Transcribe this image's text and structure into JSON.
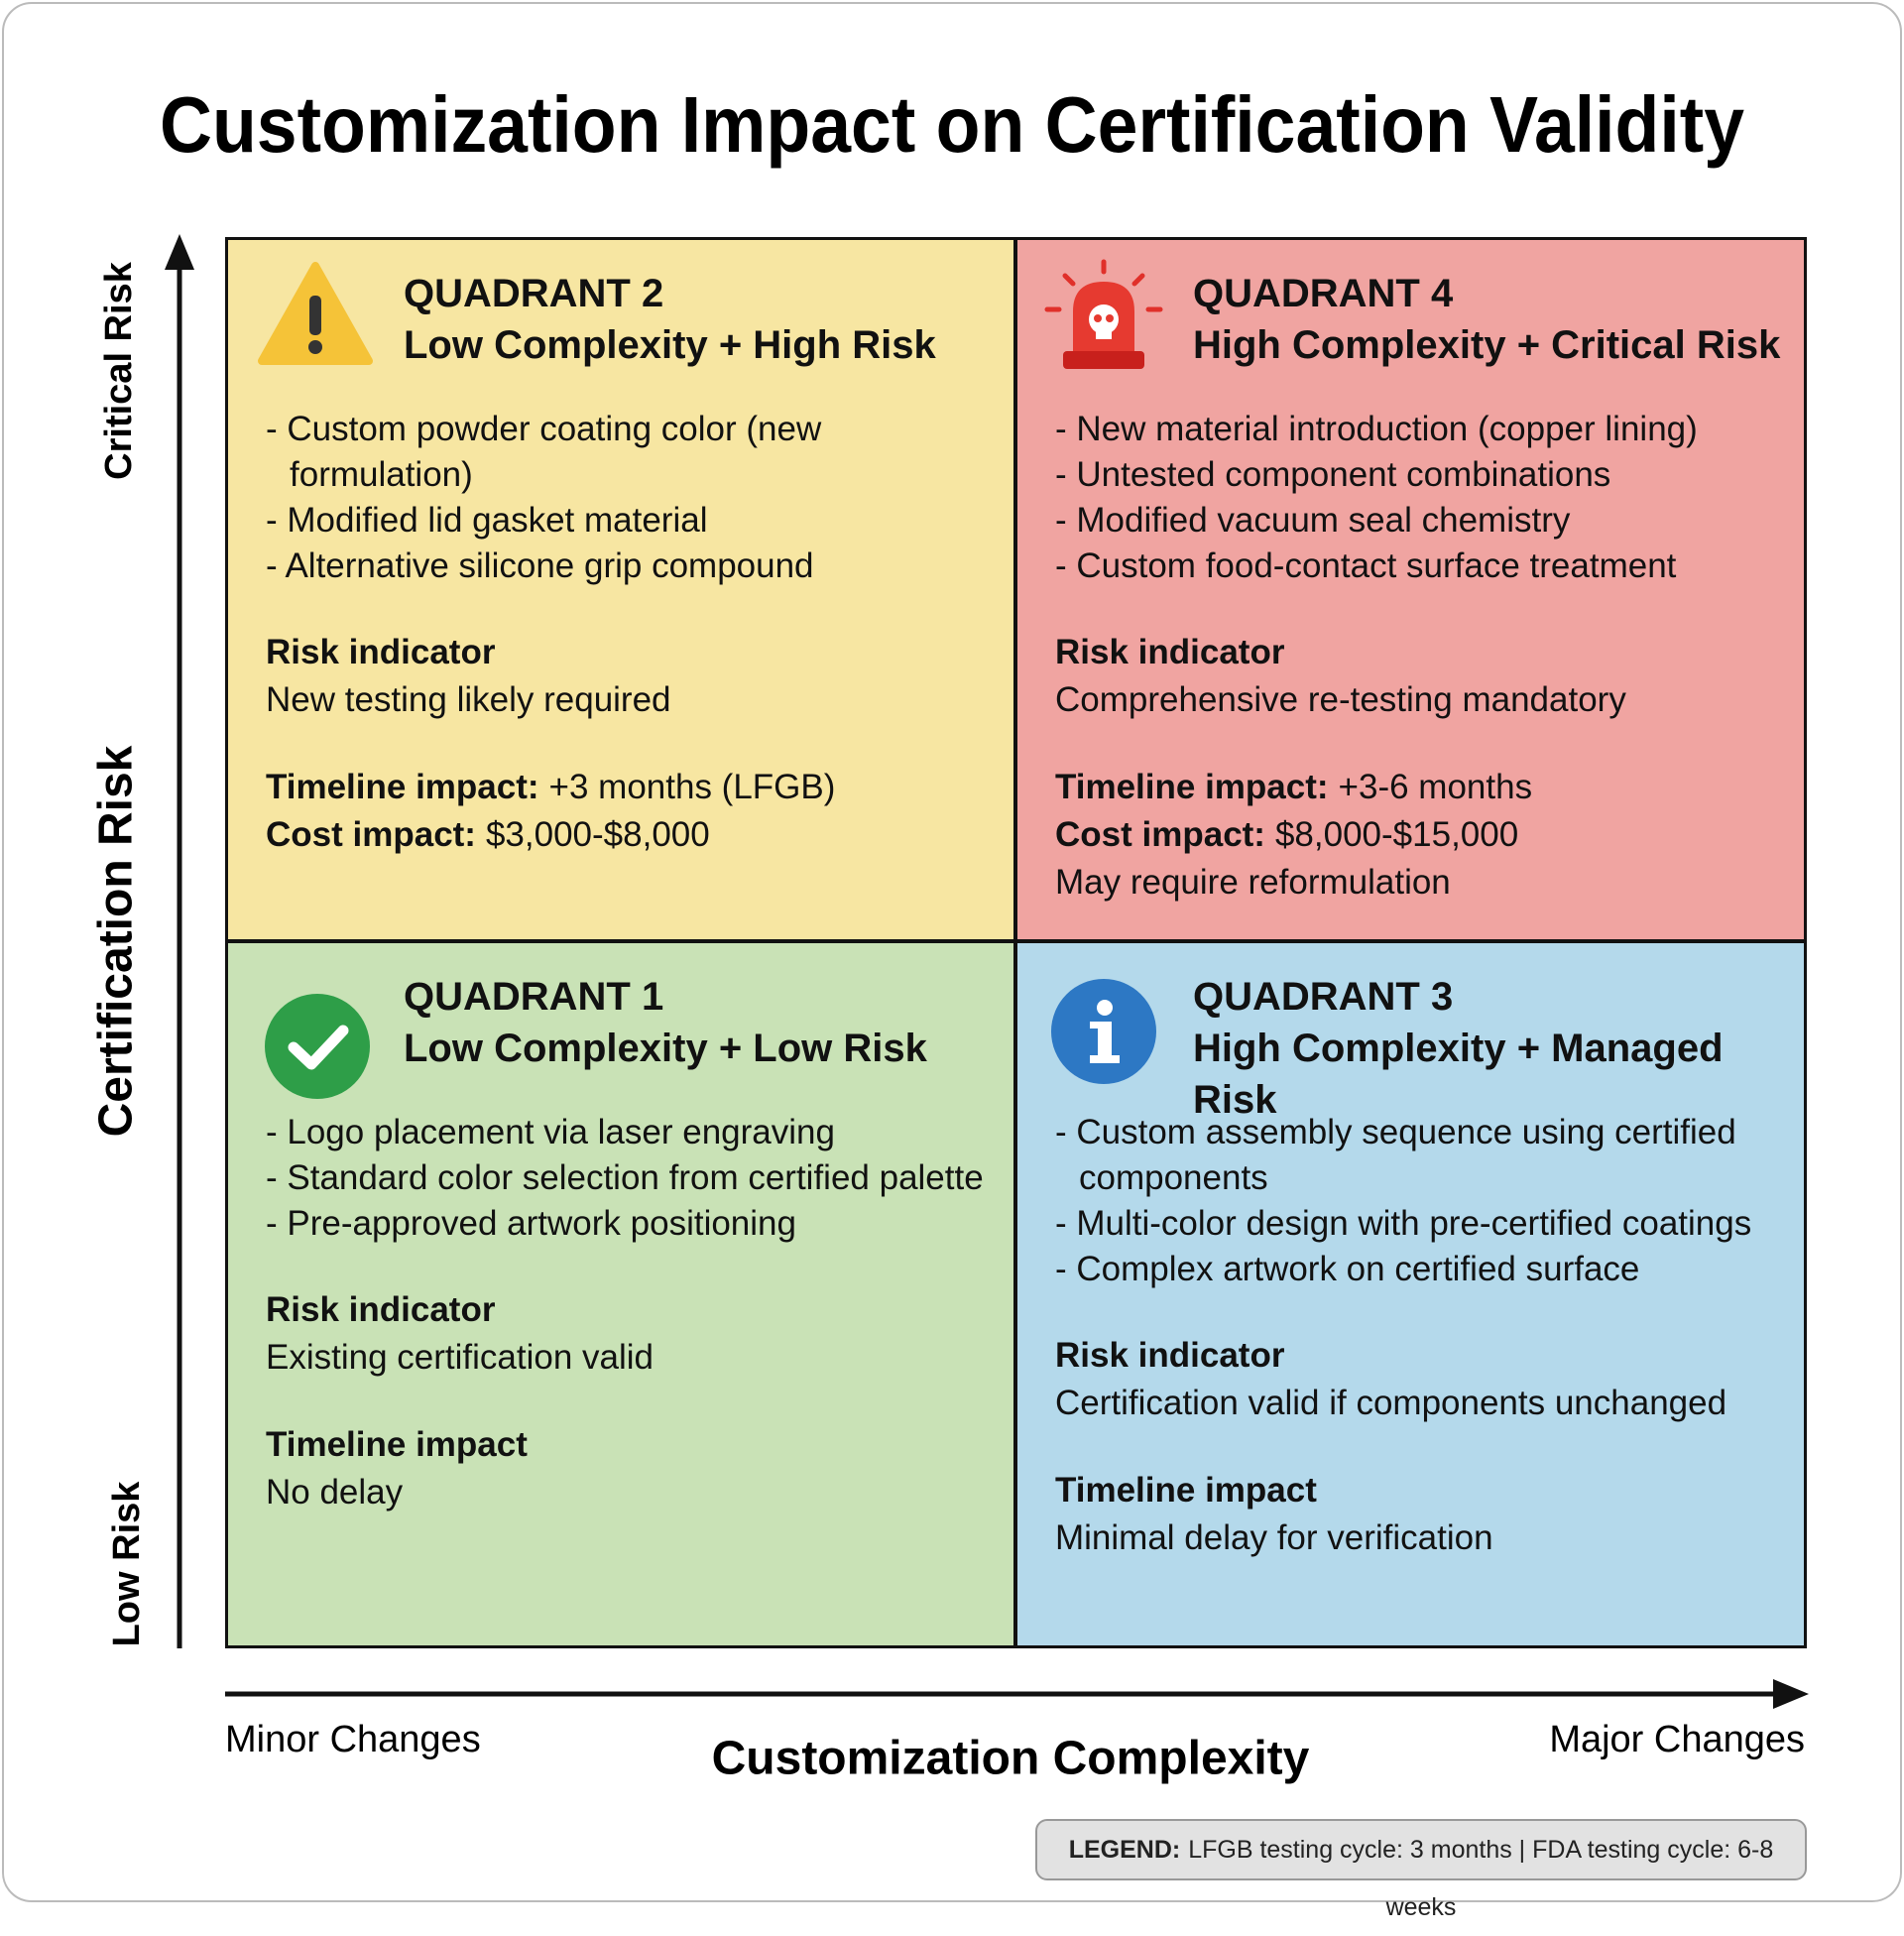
{
  "title": "Customization Impact on Certification Validity",
  "axes": {
    "y_label": "Certification Risk",
    "y_top": "Critical Risk",
    "y_bottom": "Low Risk",
    "x_label": "Customization Complexity",
    "x_left": "Minor Changes",
    "x_right": "Major Changes"
  },
  "quadrants": [
    {
      "label": "QUADRANT 2",
      "heading": "Low Complexity + High Risk",
      "items": [
        "- Custom powder coating color (new formulation)",
        "- Modified lid gasket material",
        "- Alternative silicone grip compound"
      ],
      "blocks": [
        [
          {
            "bold": "Risk indicator"
          },
          {
            "text": "New testing likely required"
          }
        ],
        [
          {
            "bold": "Timeline impact:",
            "text": "+3 months (LFGB)"
          },
          {
            "bold": "Cost impact:",
            "text": "$3,000-$8,000"
          }
        ]
      ]
    },
    {
      "label": "QUADRANT 4",
      "heading": "High Complexity + Critical Risk",
      "items": [
        "- New material introduction (copper lining)",
        "- Untested component combinations",
        "- Modified vacuum seal chemistry",
        "- Custom food-contact surface treatment"
      ],
      "blocks": [
        [
          {
            "bold": "Risk indicator"
          },
          {
            "text": "Comprehensive re-testing mandatory"
          }
        ],
        [
          {
            "bold": "Timeline impact:",
            "text": "+3-6 months"
          },
          {
            "bold": "Cost impact:",
            "text": "$8,000-$15,000"
          },
          {
            "text": "May require reformulation"
          }
        ]
      ]
    },
    {
      "label": "QUADRANT 1",
      "heading": "Low Complexity + Low Risk",
      "items": [
        "- Logo placement via laser engraving",
        "- Standard color selection from certified palette",
        "- Pre-approved artwork positioning"
      ],
      "blocks": [
        [
          {
            "bold": "Risk indicator"
          },
          {
            "text": "Existing certification valid"
          }
        ],
        [
          {
            "bold": "Timeline impact"
          },
          {
            "text": "No delay"
          }
        ]
      ]
    },
    {
      "label": "QUADRANT 3",
      "heading": "High Complexity + Managed Risk",
      "items": [
        "- Custom assembly sequence using certified components",
        "- Multi-color design with pre-certified coatings",
        "- Complex artwork on certified surface"
      ],
      "blocks": [
        [
          {
            "bold": "Risk indicator"
          },
          {
            "text": "Certification valid if components unchanged"
          }
        ],
        [
          {
            "bold": "Timeline impact"
          },
          {
            "text": "Minimal delay for verification"
          }
        ]
      ]
    }
  ],
  "legend": {
    "label": "LEGEND:",
    "text": "LFGB testing cycle: 3 months | FDA testing cycle: 6-8 weeks"
  }
}
